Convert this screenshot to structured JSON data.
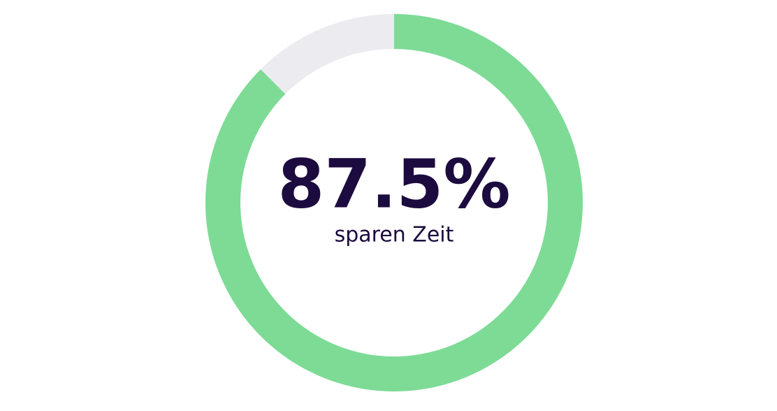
{
  "chart_data": {
    "type": "donut",
    "values": [
      87.5,
      12.5
    ],
    "value_labels": [
      "87.5%",
      null
    ],
    "colors": [
      "#7ddb96",
      "#ecebef"
    ],
    "caption": "sparen Zeit"
  }
}
